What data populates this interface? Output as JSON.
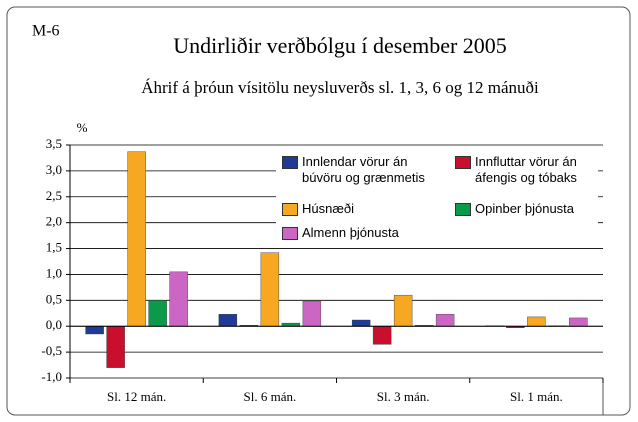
{
  "chart_data": {
    "type": "bar",
    "label": "M-6",
    "title": "Undirliðir verðbólgu í desember 2005",
    "subtitle": "Áhrif á þróun vísitölu neysluverðs sl. 1, 3, 6 og 12 mánuði",
    "y_unit": "%",
    "categories": [
      "Sl. 12 mán.",
      "Sl. 6 mán.",
      "Sl. 3 mán.",
      "Sl. 1 mán."
    ],
    "series": [
      {
        "name": "Innlendar vörur án\nbúvöru og grænmetis",
        "color": "#1f3b96",
        "values": [
          -0.15,
          0.23,
          0.12,
          0.01
        ]
      },
      {
        "name": "Innfluttar vörur án\náfengis og tóbaks",
        "color": "#c8102e",
        "values": [
          -0.8,
          0.02,
          -0.35,
          -0.03
        ]
      },
      {
        "name": "Húsnæði",
        "color": "#f7a823",
        "values": [
          3.37,
          1.42,
          0.6,
          0.18
        ]
      },
      {
        "name": "Opinber þjónusta",
        "color": "#0a9a4a",
        "values": [
          0.5,
          0.06,
          0.02,
          0.01
        ]
      },
      {
        "name": "Almenn þjónusta",
        "color": "#cc66c4",
        "values": [
          1.05,
          0.48,
          0.23,
          0.16
        ]
      }
    ],
    "ylim": [
      -1.0,
      3.5
    ],
    "yticks": [
      {
        "value": -1.0,
        "label": "-1,0"
      },
      {
        "value": -0.5,
        "label": "-0,5"
      },
      {
        "value": 0,
        "label": "0,0"
      },
      {
        "value": 0.5,
        "label": "0,5"
      },
      {
        "value": 1.0,
        "label": "1,0"
      },
      {
        "value": 1.5,
        "label": "1,5"
      },
      {
        "value": 2.0,
        "label": "2,0"
      },
      {
        "value": 2.5,
        "label": "2,5"
      },
      {
        "value": 3.0,
        "label": "3,0"
      },
      {
        "value": 3.5,
        "label": "3,5"
      }
    ],
    "grid": true
  }
}
